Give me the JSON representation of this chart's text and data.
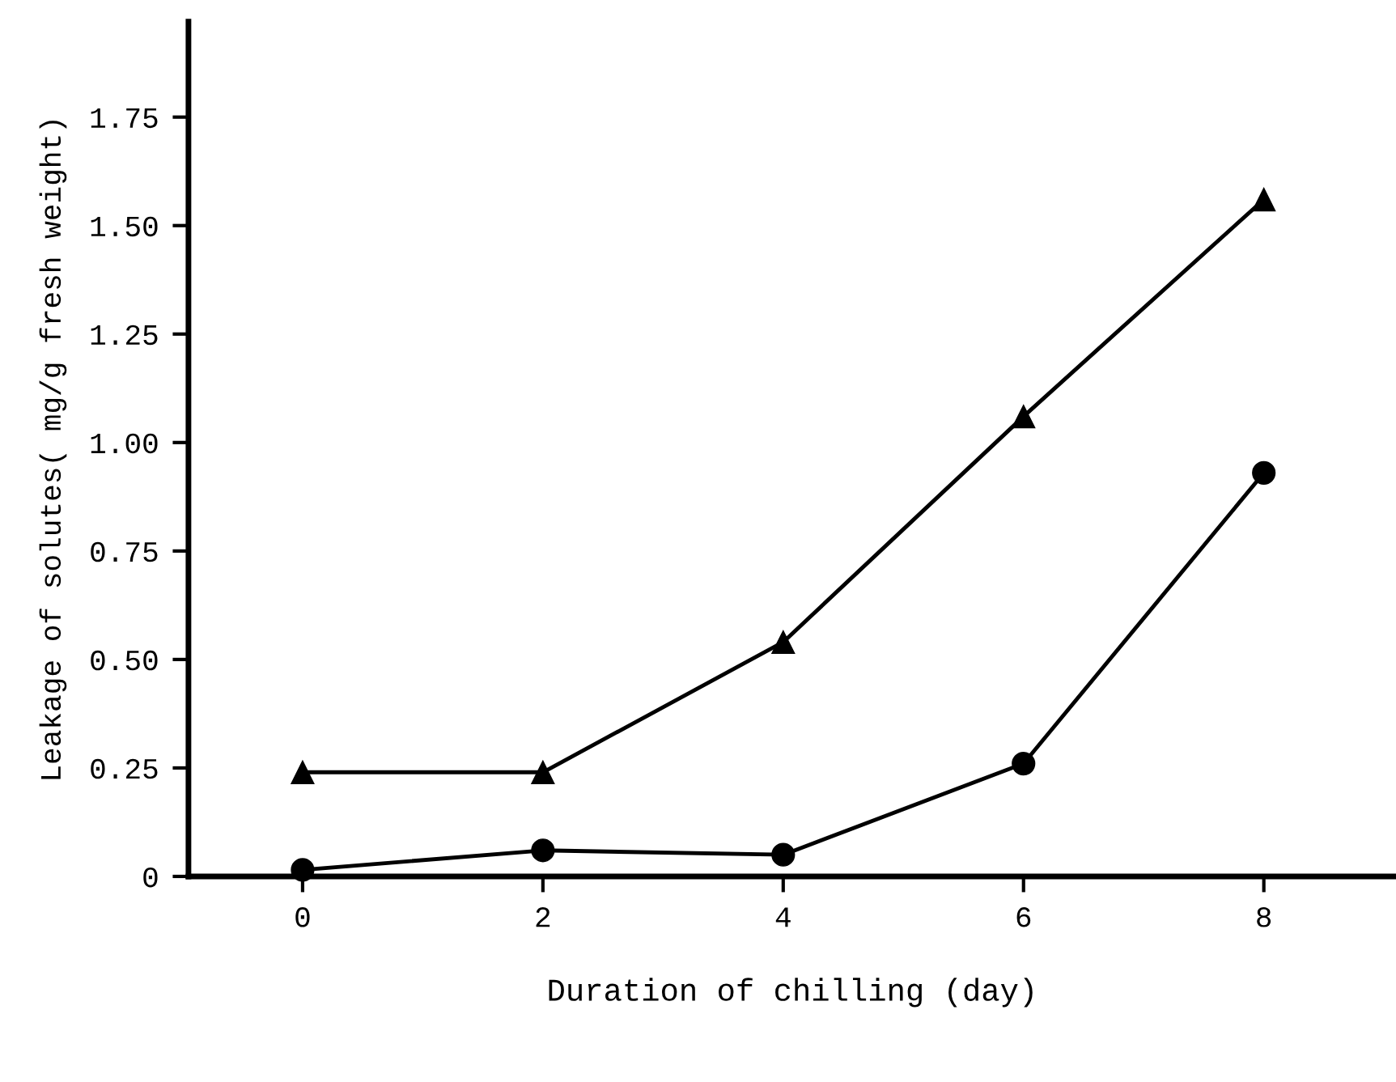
{
  "chart_data": {
    "type": "line",
    "xlabel": "Duration of chilling (day)",
    "ylabel": "Leakage of solutes( mg/g fresh weight)",
    "x": [
      0,
      2,
      4,
      6,
      8
    ],
    "series": [
      {
        "color": "#000000",
        "marker": "triangle",
        "values": [
          0.24,
          0.24,
          0.54,
          1.06,
          1.56
        ]
      },
      {
        "color": "#000000",
        "marker": "circle",
        "values": [
          0.015,
          0.06,
          0.05,
          0.26,
          0.93
        ]
      }
    ],
    "xlim": [
      -0.95,
      9.1
    ],
    "ylim": [
      0,
      1.97
    ],
    "xticks": [
      0,
      2,
      4,
      6,
      8
    ],
    "yticks": [
      0,
      {
        "value": 0.25,
        "label": "0.25"
      },
      {
        "value": 0.5,
        "label": "0.50"
      },
      {
        "value": 0.75,
        "label": "0.75"
      },
      {
        "value": 1.0,
        "label": "1.00"
      },
      {
        "value": 1.25,
        "label": "1.25"
      },
      {
        "value": 1.5,
        "label": "1.50"
      },
      {
        "value": 1.75,
        "label": "1.75"
      }
    ],
    "grid": false,
    "line_style": "solid"
  }
}
